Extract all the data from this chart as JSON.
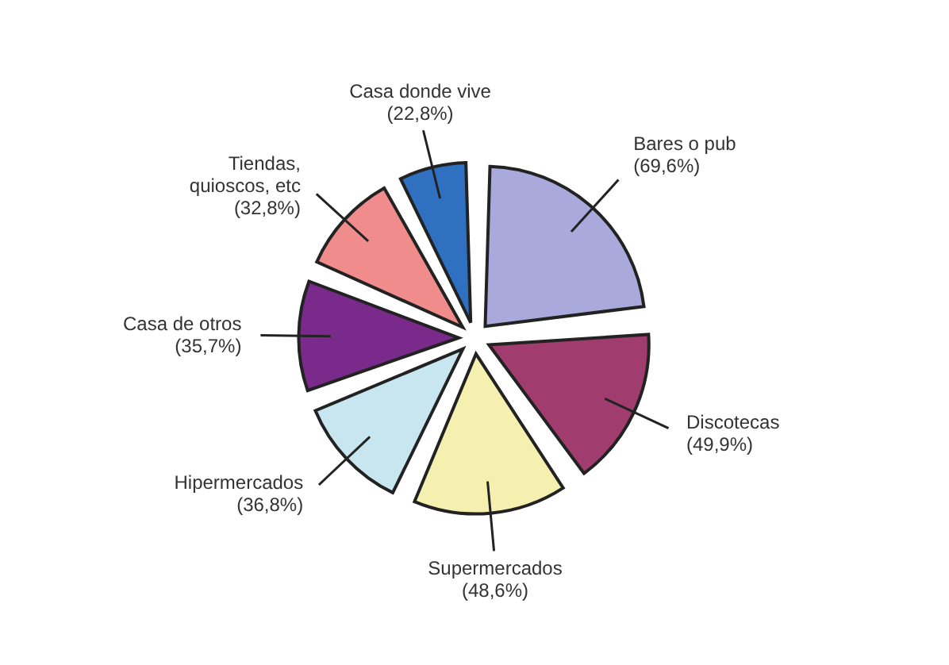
{
  "chart_data": {
    "type": "pie",
    "categories": [
      "Bares o pub",
      "Discotecas",
      "Supermercados",
      "Hipermercados",
      "Casa de otros",
      "Tiendas, quioscos, etc",
      "Casa donde vive"
    ],
    "values": [
      69.6,
      49.9,
      48.6,
      36.8,
      35.7,
      32.8,
      22.8
    ],
    "value_labels": [
      "(69,6%)",
      "(49,9%)",
      "(48,6%)",
      "(36,8%)",
      "(35,7%)",
      "(32,8%)",
      "(22,8%)"
    ],
    "colors": [
      "#a9a9dc",
      "#a03c6e",
      "#f5f0b0",
      "#c8e6f0",
      "#7a2a8a",
      "#f08c8c",
      "#3070c0"
    ]
  }
}
